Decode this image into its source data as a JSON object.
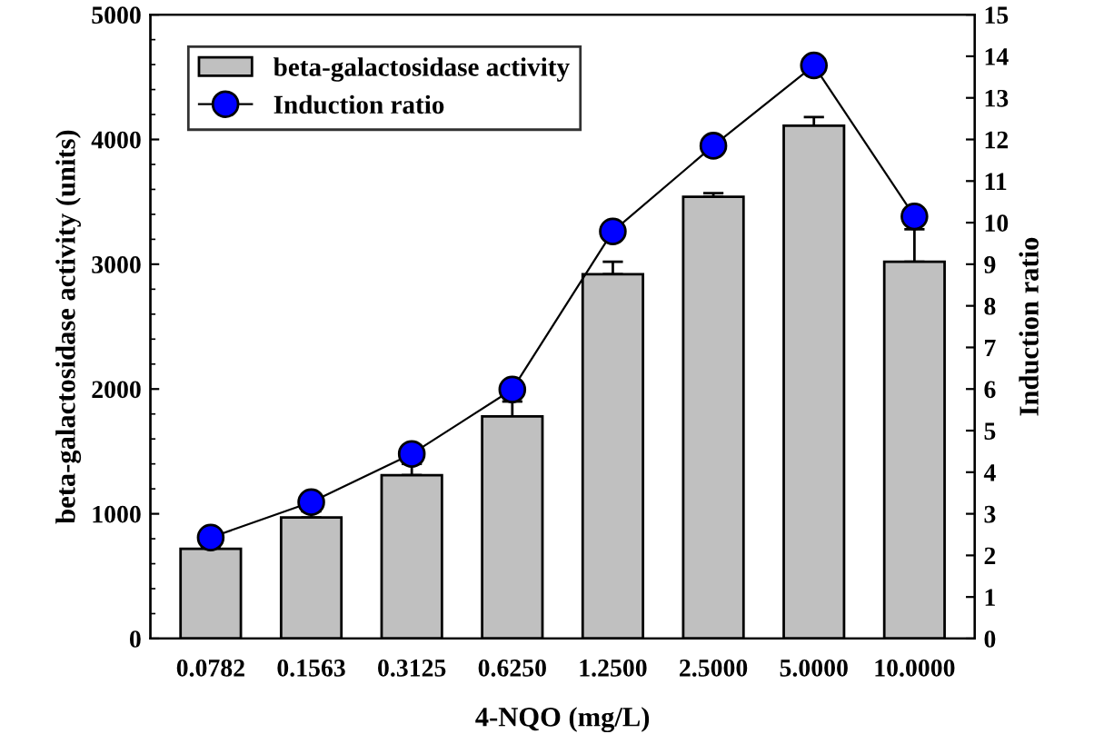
{
  "chart_data": {
    "type": "bar",
    "xlabel": "4-NQO (mg/L)",
    "ylabel": "beta-galactosidase activity (units)",
    "y2label": "Induction ratio",
    "categories": [
      "0.0782",
      "0.1563",
      "0.3125",
      "0.6250",
      "1.2500",
      "2.5000",
      "5.0000",
      "10.0000"
    ],
    "series": [
      {
        "name": "beta-galactosidase activity",
        "color": "#c0c0c0",
        "values": [
          720,
          970,
          1310,
          1780,
          2920,
          3540,
          4110,
          3020
        ],
        "errors": [
          [
            720,
            740
          ],
          [
            970,
            1020
          ],
          [
            1310,
            1400
          ],
          [
            1780,
            1900
          ],
          [
            2920,
            3020
          ],
          [
            3540,
            3570
          ],
          [
            4110,
            4180
          ],
          [
            3020,
            3280
          ]
        ]
      },
      {
        "name": "Induction ratio",
        "type": "line",
        "axis": "y2",
        "color": "#0000ff",
        "marker": "circle",
        "values": [
          2.43,
          3.28,
          4.44,
          5.99,
          9.79,
          11.85,
          13.78,
          10.15
        ]
      }
    ],
    "ylim": [
      0,
      5000
    ],
    "yticks": [
      0,
      1000,
      2000,
      3000,
      4000,
      5000
    ],
    "y2lim": [
      0,
      15
    ],
    "y2ticks": [
      0,
      1,
      2,
      3,
      4,
      5,
      6,
      7,
      8,
      9,
      10,
      11,
      12,
      13,
      14,
      15
    ],
    "legend": "top left",
    "grid": false
  }
}
